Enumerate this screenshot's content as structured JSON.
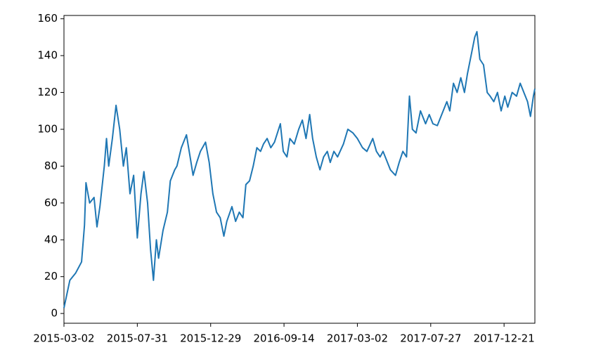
{
  "chart_data": {
    "type": "line",
    "x": [
      0,
      8,
      16,
      24,
      28,
      30,
      35,
      41,
      45,
      49,
      55,
      58,
      61,
      66,
      71,
      76,
      81,
      85,
      90,
      95,
      100,
      105,
      109,
      114,
      118,
      122,
      126,
      129,
      135,
      141,
      145,
      151,
      154,
      160,
      167,
      172,
      176,
      181,
      186,
      193,
      198,
      203,
      208,
      213,
      218,
      222,
      229,
      234,
      239,
      244,
      248,
      253,
      258,
      263,
      268,
      272,
      277,
      282,
      287,
      295,
      299,
      304,
      308,
      314,
      320,
      325,
      330,
      335,
      339,
      344,
      349,
      354,
      359,
      363,
      368,
      373,
      381,
      387,
      394,
      400,
      407,
      413,
      421,
      426,
      431,
      435,
      440,
      445,
      452,
      457,
      462,
      467,
      471,
      475,
      480,
      486,
      493,
      498,
      503,
      509,
      515,
      522,
      526,
      531,
      536,
      541,
      546,
      550,
      555,
      560,
      563,
      567,
      572,
      577,
      581,
      586,
      591,
      596,
      601,
      605,
      611,
      617,
      622,
      627,
      632,
      636,
      640,
      642
    ],
    "values": [
      3,
      18,
      22,
      28,
      48,
      71,
      60,
      63,
      47,
      58,
      80,
      95,
      80,
      95,
      113,
      100,
      80,
      90,
      65,
      75,
      41,
      65,
      77,
      60,
      35,
      18,
      40,
      30,
      45,
      55,
      72,
      78,
      80,
      90,
      97,
      85,
      75,
      82,
      88,
      93,
      82,
      65,
      55,
      52,
      42,
      50,
      58,
      50,
      55,
      52,
      70,
      72,
      80,
      90,
      88,
      92,
      95,
      90,
      93,
      103,
      88,
      85,
      95,
      92,
      100,
      105,
      95,
      108,
      95,
      85,
      78,
      85,
      88,
      82,
      88,
      85,
      92,
      100,
      98,
      95,
      90,
      88,
      95,
      88,
      85,
      88,
      83,
      78,
      75,
      82,
      88,
      85,
      118,
      100,
      98,
      110,
      103,
      108,
      103,
      102,
      108,
      115,
      110,
      125,
      120,
      128,
      120,
      130,
      140,
      150,
      153,
      138,
      135,
      120,
      118,
      115,
      120,
      110,
      118,
      112,
      120,
      118,
      125,
      120,
      115,
      107,
      118,
      122
    ],
    "color": "#1f77b4",
    "xlim": [
      0,
      642
    ],
    "xticks": [
      {
        "value": 0,
        "label": "2015-03-02"
      },
      {
        "value": 100,
        "label": "2015-07-31"
      },
      {
        "value": 200,
        "label": "2015-12-29"
      },
      {
        "value": 300,
        "label": "2016-09-14"
      },
      {
        "value": 400,
        "label": "2017-03-02"
      },
      {
        "value": 500,
        "label": "2017-07-27"
      },
      {
        "value": 600,
        "label": "2017-12-21"
      }
    ],
    "ylim": [
      -5.3,
      161.8
    ],
    "yticks": [
      0,
      20,
      40,
      60,
      80,
      100,
      120,
      140,
      160
    ]
  }
}
